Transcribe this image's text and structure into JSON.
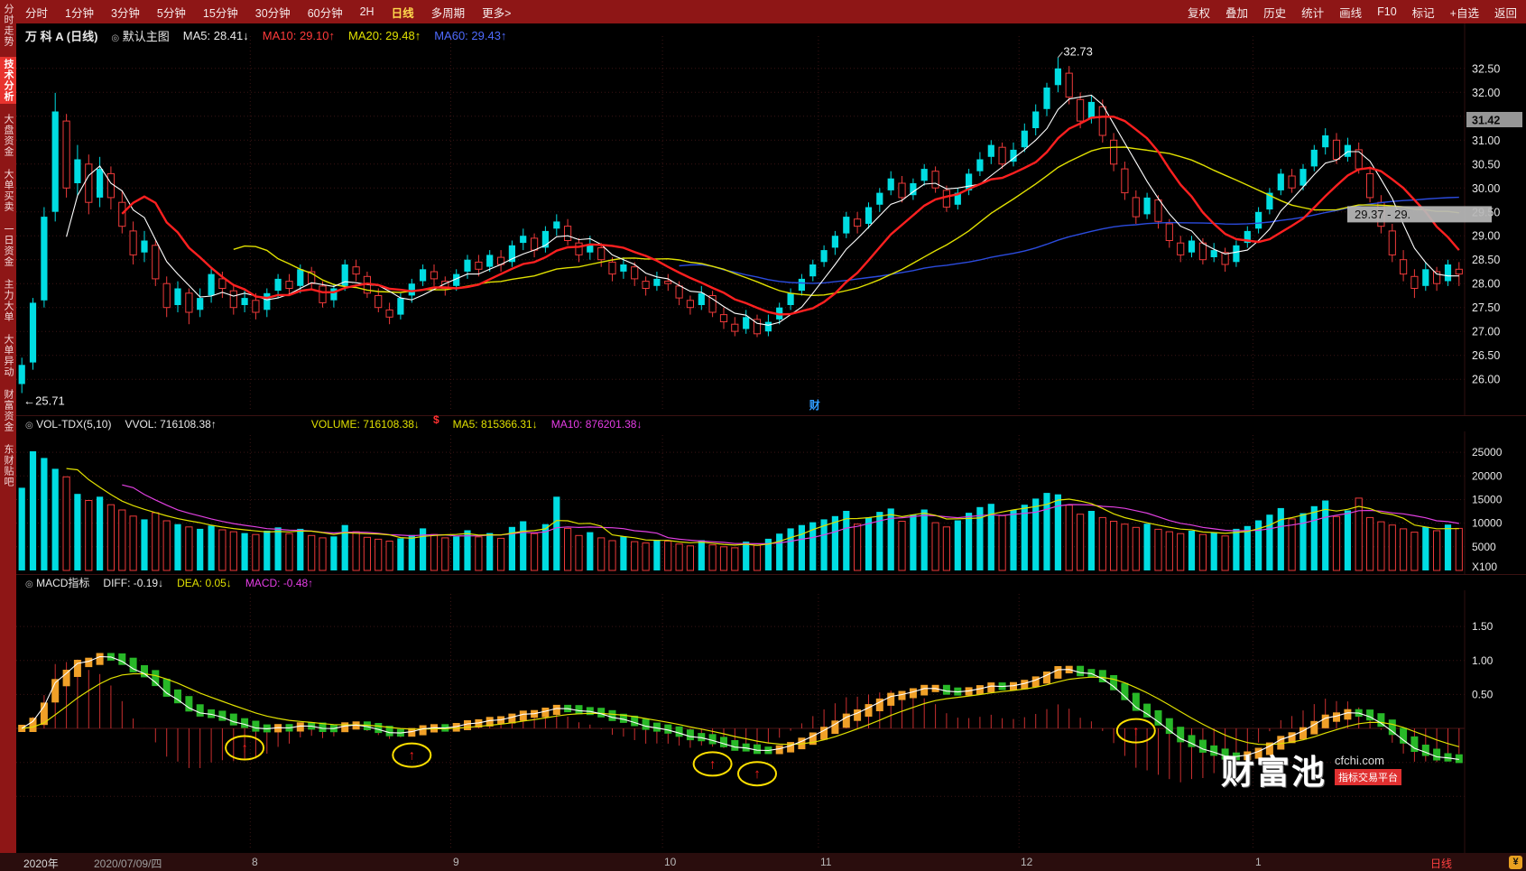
{
  "toolbar": {
    "periods": [
      "分时",
      "1分钟",
      "3分钟",
      "5分钟",
      "15分钟",
      "30分钟",
      "60分钟",
      "2H",
      "日线",
      "多周期",
      "更多>"
    ],
    "active_period": "日线",
    "tools": [
      "复权",
      "叠加",
      "历史",
      "统计",
      "画线",
      "F10",
      "标记",
      "+自选",
      "返回"
    ]
  },
  "sidebar": {
    "items": [
      "分时走势",
      "技术分析",
      "大盘资金",
      "大单买卖",
      "一日资金",
      "主力大单",
      "大单异动",
      "财富资金",
      "东财贴吧"
    ],
    "active": "技术分析"
  },
  "chart_header": {
    "title": "万 科 A (日线)",
    "indicator_icon": "◎",
    "indicator": "默认主图",
    "ma5": "MA5: 28.41↓",
    "ma10": "MA10: 29.10↑",
    "ma20": "MA20: 29.48↑",
    "ma60": "MA60: 29.43↑"
  },
  "volume_header": {
    "icon": "◎",
    "name": "VOL-TDX(5,10)",
    "vvol": "VVOL: 716108.38↑",
    "volume": "VOLUME: 716108.38↓",
    "dollar": "$",
    "ma5": "MA5: 815366.31↓",
    "ma10": "MA10: 876201.38↓"
  },
  "macd_header": {
    "icon": "◎",
    "name": "MACD指标",
    "diff": "DIFF: -0.19↓",
    "dea": "DEA: 0.05↓",
    "macd": "MACD: -0.48↑"
  },
  "bottom": {
    "year": "2020年",
    "date": "2020/07/09/四",
    "period": "日线",
    "corner": "¥"
  },
  "watermark": {
    "brand": "财富池",
    "domain": "cfchi.com",
    "tagline": "指标交易平台"
  },
  "chart_data": {
    "type": "candlestick",
    "symbol": "万科A",
    "period": "日线",
    "colors": {
      "up": "#00dde2",
      "down": "#ee3a3a",
      "ma5": "#ffffff",
      "ma10": "#ff2020",
      "ma20": "#e0e000",
      "ma60": "#2b4bdd",
      "vol_ma5": "#e0e000",
      "vol_ma10": "#e040e0",
      "diff": "#ffffff",
      "dea": "#e0e000",
      "hist_pos_bar": "#f0a028",
      "hist_neg_bar": "#28b828",
      "hist_line": "#c92f2f",
      "signal": "#ffe000",
      "grid": "#3a1414",
      "axis_text": "#e8e8e8"
    },
    "y_axis": {
      "min": 25.55,
      "max": 32.95,
      "grid": [
        26.0,
        26.5,
        27.0,
        27.5,
        28.0,
        28.5,
        29.0,
        29.5,
        30.0,
        30.5,
        31.0,
        31.5,
        32.0,
        32.5
      ],
      "labels": [
        [
          32.5,
          "32.50"
        ],
        [
          32.0,
          "32.00"
        ],
        [
          31.0,
          "31.00"
        ],
        [
          30.5,
          "30.50"
        ],
        [
          30.0,
          "30.00"
        ],
        [
          29.5,
          "29.50"
        ],
        [
          29.0,
          "29.00"
        ],
        [
          28.5,
          "28.50"
        ],
        [
          28.0,
          "28.00"
        ],
        [
          27.5,
          "27.50"
        ],
        [
          27.0,
          "27.00"
        ],
        [
          26.5,
          "26.50"
        ],
        [
          26.0,
          "26.00"
        ]
      ]
    },
    "volume_axis": {
      "max": 27500,
      "unit": "X100",
      "grid": [
        [
          25000,
          "25000"
        ],
        [
          20000,
          "20000"
        ],
        [
          15000,
          "15000"
        ],
        [
          10000,
          "10000"
        ],
        [
          5000,
          "5000"
        ]
      ]
    },
    "macd_axis": {
      "min": -1.7,
      "max": 1.9,
      "grid_values": [
        1.5,
        1.0,
        0.5,
        -0.5,
        -1.0
      ],
      "labels": [
        [
          1.5,
          "1.50"
        ],
        [
          1.0,
          "1.00"
        ],
        [
          0.5,
          "0.50"
        ]
      ]
    },
    "x_axis": {
      "months": [
        {
          "label": "8",
          "day": 21
        },
        {
          "label": "9",
          "day": 39
        },
        {
          "label": "10",
          "day": 58
        },
        {
          "label": "11",
          "day": 72
        },
        {
          "label": "12",
          "day": 90
        },
        {
          "label": "1",
          "day": 111
        }
      ]
    },
    "annotations": {
      "high": {
        "day": 93,
        "price": 32.73,
        "text": "32.73"
      },
      "low": {
        "day": 0,
        "price": 25.71,
        "text": "←25.71"
      },
      "cai": {
        "day": 71,
        "text": "财"
      },
      "price_marker": {
        "value": 31.42,
        "text": "31.42"
      },
      "range_marker": {
        "value": 29.45,
        "text": "29.37 - 29."
      }
    },
    "signals": [
      20,
      35,
      62,
      66,
      100
    ],
    "candles": [
      [
        25.9,
        26.45,
        25.71,
        26.3
      ],
      [
        26.35,
        27.7,
        26.2,
        27.6
      ],
      [
        27.65,
        29.6,
        27.5,
        29.4
      ],
      [
        29.5,
        31.99,
        29.3,
        31.6
      ],
      [
        31.4,
        31.55,
        29.8,
        30.0
      ],
      [
        30.1,
        30.9,
        29.85,
        30.6
      ],
      [
        30.5,
        30.7,
        29.45,
        29.7
      ],
      [
        29.8,
        30.65,
        29.6,
        30.4
      ],
      [
        30.3,
        30.45,
        29.55,
        29.8
      ],
      [
        29.7,
        29.95,
        29.05,
        29.2
      ],
      [
        29.1,
        29.3,
        28.4,
        28.6
      ],
      [
        28.65,
        29.1,
        28.45,
        28.9
      ],
      [
        28.8,
        28.9,
        27.95,
        28.1
      ],
      [
        28.0,
        28.15,
        27.3,
        27.5
      ],
      [
        27.55,
        28.05,
        27.4,
        27.9
      ],
      [
        27.8,
        27.9,
        27.15,
        27.4
      ],
      [
        27.45,
        27.9,
        27.3,
        27.7
      ],
      [
        27.75,
        28.35,
        27.6,
        28.2
      ],
      [
        28.1,
        28.25,
        27.7,
        27.9
      ],
      [
        27.85,
        27.95,
        27.35,
        27.5
      ],
      [
        27.55,
        27.85,
        27.4,
        27.7
      ],
      [
        27.65,
        27.8,
        27.25,
        27.4
      ],
      [
        27.45,
        27.9,
        27.3,
        27.8
      ],
      [
        27.85,
        28.2,
        27.7,
        28.1
      ],
      [
        28.05,
        28.2,
        27.75,
        27.9
      ],
      [
        27.95,
        28.4,
        27.8,
        28.3
      ],
      [
        28.25,
        28.35,
        27.9,
        28.0
      ],
      [
        27.95,
        28.05,
        27.5,
        27.6
      ],
      [
        27.65,
        28.0,
        27.5,
        27.9
      ],
      [
        27.95,
        28.5,
        27.85,
        28.4
      ],
      [
        28.35,
        28.5,
        28.05,
        28.2
      ],
      [
        28.15,
        28.25,
        27.7,
        27.8
      ],
      [
        27.75,
        27.9,
        27.4,
        27.5
      ],
      [
        27.45,
        27.6,
        27.15,
        27.3
      ],
      [
        27.35,
        27.8,
        27.25,
        27.7
      ],
      [
        27.75,
        28.1,
        27.6,
        28.0
      ],
      [
        28.05,
        28.4,
        27.95,
        28.3
      ],
      [
        28.25,
        28.4,
        27.95,
        28.1
      ],
      [
        28.05,
        28.15,
        27.75,
        27.9
      ],
      [
        27.95,
        28.3,
        27.85,
        28.2
      ],
      [
        28.25,
        28.6,
        28.1,
        28.5
      ],
      [
        28.45,
        28.6,
        28.15,
        28.3
      ],
      [
        28.35,
        28.7,
        28.25,
        28.6
      ],
      [
        28.55,
        28.7,
        28.25,
        28.4
      ],
      [
        28.45,
        28.9,
        28.35,
        28.8
      ],
      [
        28.85,
        29.15,
        28.7,
        29.0
      ],
      [
        28.95,
        29.05,
        28.55,
        28.7
      ],
      [
        28.75,
        29.2,
        28.65,
        29.1
      ],
      [
        29.15,
        29.45,
        29.0,
        29.3
      ],
      [
        29.2,
        29.35,
        28.8,
        28.9
      ],
      [
        28.85,
        28.95,
        28.45,
        28.6
      ],
      [
        28.65,
        29.0,
        28.5,
        28.8
      ],
      [
        28.75,
        28.85,
        28.35,
        28.5
      ],
      [
        28.45,
        28.55,
        28.05,
        28.2
      ],
      [
        28.25,
        28.55,
        28.1,
        28.4
      ],
      [
        28.35,
        28.45,
        27.95,
        28.1
      ],
      [
        28.05,
        28.15,
        27.75,
        27.9
      ],
      [
        27.95,
        28.25,
        27.85,
        28.1
      ],
      [
        28.05,
        28.2,
        27.85,
        28.0
      ],
      [
        27.95,
        28.05,
        27.55,
        27.7
      ],
      [
        27.65,
        27.75,
        27.35,
        27.5
      ],
      [
        27.55,
        27.95,
        27.45,
        27.8
      ],
      [
        27.75,
        27.85,
        27.3,
        27.4
      ],
      [
        27.35,
        27.5,
        27.05,
        27.2
      ],
      [
        27.15,
        27.3,
        26.9,
        27.0
      ],
      [
        27.05,
        27.45,
        26.95,
        27.3
      ],
      [
        27.25,
        27.35,
        26.88,
        26.95
      ],
      [
        27.0,
        27.35,
        26.9,
        27.2
      ],
      [
        27.25,
        27.6,
        27.15,
        27.5
      ],
      [
        27.55,
        27.9,
        27.45,
        27.8
      ],
      [
        27.85,
        28.2,
        27.75,
        28.1
      ],
      [
        28.15,
        28.5,
        28.05,
        28.4
      ],
      [
        28.45,
        28.8,
        28.35,
        28.7
      ],
      [
        28.75,
        29.1,
        28.6,
        29.0
      ],
      [
        29.05,
        29.5,
        28.95,
        29.4
      ],
      [
        29.35,
        29.5,
        29.05,
        29.2
      ],
      [
        29.25,
        29.7,
        29.15,
        29.6
      ],
      [
        29.65,
        30.0,
        29.5,
        29.9
      ],
      [
        29.95,
        30.35,
        29.85,
        30.2
      ],
      [
        30.1,
        30.25,
        29.7,
        29.8
      ],
      [
        29.85,
        30.2,
        29.75,
        30.1
      ],
      [
        30.15,
        30.5,
        30.05,
        30.4
      ],
      [
        30.35,
        30.45,
        29.9,
        30.0
      ],
      [
        29.95,
        30.05,
        29.5,
        29.6
      ],
      [
        29.65,
        30.0,
        29.55,
        29.9
      ],
      [
        29.95,
        30.4,
        29.85,
        30.3
      ],
      [
        30.35,
        30.75,
        30.25,
        30.6
      ],
      [
        30.65,
        31.0,
        30.5,
        30.9
      ],
      [
        30.85,
        30.95,
        30.4,
        30.5
      ],
      [
        30.55,
        30.95,
        30.45,
        30.8
      ],
      [
        30.85,
        31.35,
        30.75,
        31.2
      ],
      [
        31.25,
        31.75,
        31.1,
        31.6
      ],
      [
        31.65,
        32.2,
        31.5,
        32.1
      ],
      [
        32.15,
        32.73,
        32.0,
        32.5
      ],
      [
        32.4,
        32.55,
        31.75,
        31.9
      ],
      [
        31.85,
        32.0,
        31.25,
        31.4
      ],
      [
        31.45,
        31.95,
        31.35,
        31.8
      ],
      [
        31.7,
        31.85,
        30.95,
        31.1
      ],
      [
        31.0,
        31.15,
        30.35,
        30.5
      ],
      [
        30.4,
        30.55,
        29.75,
        29.9
      ],
      [
        29.8,
        29.95,
        29.25,
        29.4
      ],
      [
        29.45,
        29.9,
        29.35,
        29.8
      ],
      [
        29.75,
        29.85,
        29.15,
        29.3
      ],
      [
        29.25,
        29.35,
        28.75,
        28.9
      ],
      [
        28.85,
        29.0,
        28.45,
        28.6
      ],
      [
        28.65,
        29.0,
        28.55,
        28.9
      ],
      [
        28.85,
        28.95,
        28.4,
        28.5
      ],
      [
        28.55,
        28.85,
        28.45,
        28.7
      ],
      [
        28.65,
        28.75,
        28.25,
        28.4
      ],
      [
        28.45,
        28.9,
        28.35,
        28.8
      ],
      [
        28.85,
        29.2,
        28.75,
        29.1
      ],
      [
        29.15,
        29.6,
        29.05,
        29.5
      ],
      [
        29.55,
        30.0,
        29.45,
        29.9
      ],
      [
        29.95,
        30.4,
        29.85,
        30.3
      ],
      [
        30.25,
        30.4,
        29.9,
        30.0
      ],
      [
        30.05,
        30.5,
        29.95,
        30.4
      ],
      [
        30.45,
        30.9,
        30.35,
        30.8
      ],
      [
        30.85,
        31.25,
        30.7,
        31.1
      ],
      [
        31.0,
        31.15,
        30.5,
        30.6
      ],
      [
        30.65,
        31.05,
        30.55,
        30.9
      ],
      [
        30.8,
        30.95,
        30.3,
        30.4
      ],
      [
        30.3,
        30.45,
        29.7,
        29.8
      ],
      [
        29.7,
        29.85,
        29.05,
        29.2
      ],
      [
        29.1,
        29.25,
        28.45,
        28.6
      ],
      [
        28.5,
        28.7,
        28.05,
        28.2
      ],
      [
        28.15,
        28.3,
        27.7,
        27.9
      ],
      [
        27.95,
        28.45,
        27.85,
        28.3
      ],
      [
        28.25,
        28.35,
        27.85,
        28.0
      ],
      [
        28.05,
        28.5,
        27.95,
        28.4
      ],
      [
        28.3,
        28.45,
        27.95,
        28.2
      ]
    ],
    "volumes": [
      17500,
      25200,
      23800,
      21500,
      19800,
      16200,
      14800,
      15600,
      13900,
      12800,
      11500,
      10800,
      12200,
      10500,
      9800,
      9200,
      8800,
      9500,
      8600,
      8200,
      7900,
      7600,
      8400,
      9100,
      7800,
      8800,
      7400,
      6900,
      7200,
      9600,
      8200,
      7000,
      6600,
      6200,
      6800,
      7500,
      8900,
      7600,
      6900,
      7200,
      8500,
      7100,
      7900,
      6800,
      9200,
      10400,
      7800,
      9800,
      15600,
      8900,
      7400,
      8100,
      6900,
      6300,
      7200,
      6100,
      5800,
      6500,
      6200,
      5600,
      5200,
      6400,
      5400,
      5000,
      4800,
      6100,
      5300,
      6700,
      7800,
      8900,
      9600,
      10200,
      10800,
      11500,
      12600,
      9800,
      11200,
      12400,
      13100,
      10400,
      11800,
      12900,
      10100,
      9200,
      10600,
      12200,
      13400,
      14100,
      11600,
      12800,
      13900,
      15200,
      16400,
      16100,
      13800,
      11900,
      12600,
      11200,
      10400,
      9800,
      9100,
      9900,
      8700,
      8200,
      7800,
      8400,
      7600,
      8100,
      7300,
      8800,
      9400,
      10600,
      11800,
      13200,
      10900,
      12100,
      13600,
      14800,
      11400,
      12700,
      15300,
      11200,
      10300,
      9600,
      8800,
      8100,
      9200,
      8400,
      9700,
      8900
    ]
  }
}
